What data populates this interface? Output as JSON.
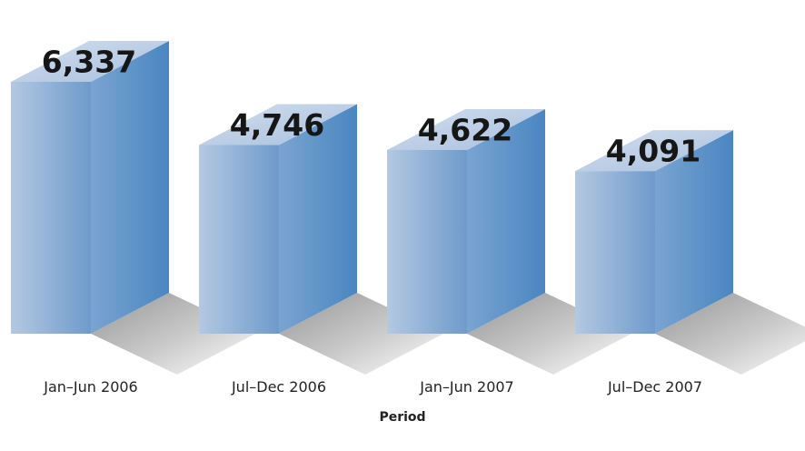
{
  "chart_data": {
    "type": "bar",
    "style": "3d",
    "categories": [
      "Jan–Jun 2006",
      "Jul–Dec 2006",
      "Jan–Jun 2007",
      "Jul–Dec 2007"
    ],
    "values": [
      6337,
      4746,
      4622,
      4091
    ],
    "value_labels": [
      "6,337",
      "4,746",
      "4,622",
      "4,091"
    ],
    "title": "",
    "xlabel": "Period",
    "ylabel": "",
    "grid": false,
    "legend": "none"
  },
  "colors": {
    "front_light": "#b4c8e2",
    "front_dark": "#6e9bcb",
    "side_light": "#7aa4d1",
    "side_dark": "#4a86c1",
    "top_light": "#d2deee",
    "top_dark": "#a9c0de",
    "shadow": "#8a8a8a"
  }
}
